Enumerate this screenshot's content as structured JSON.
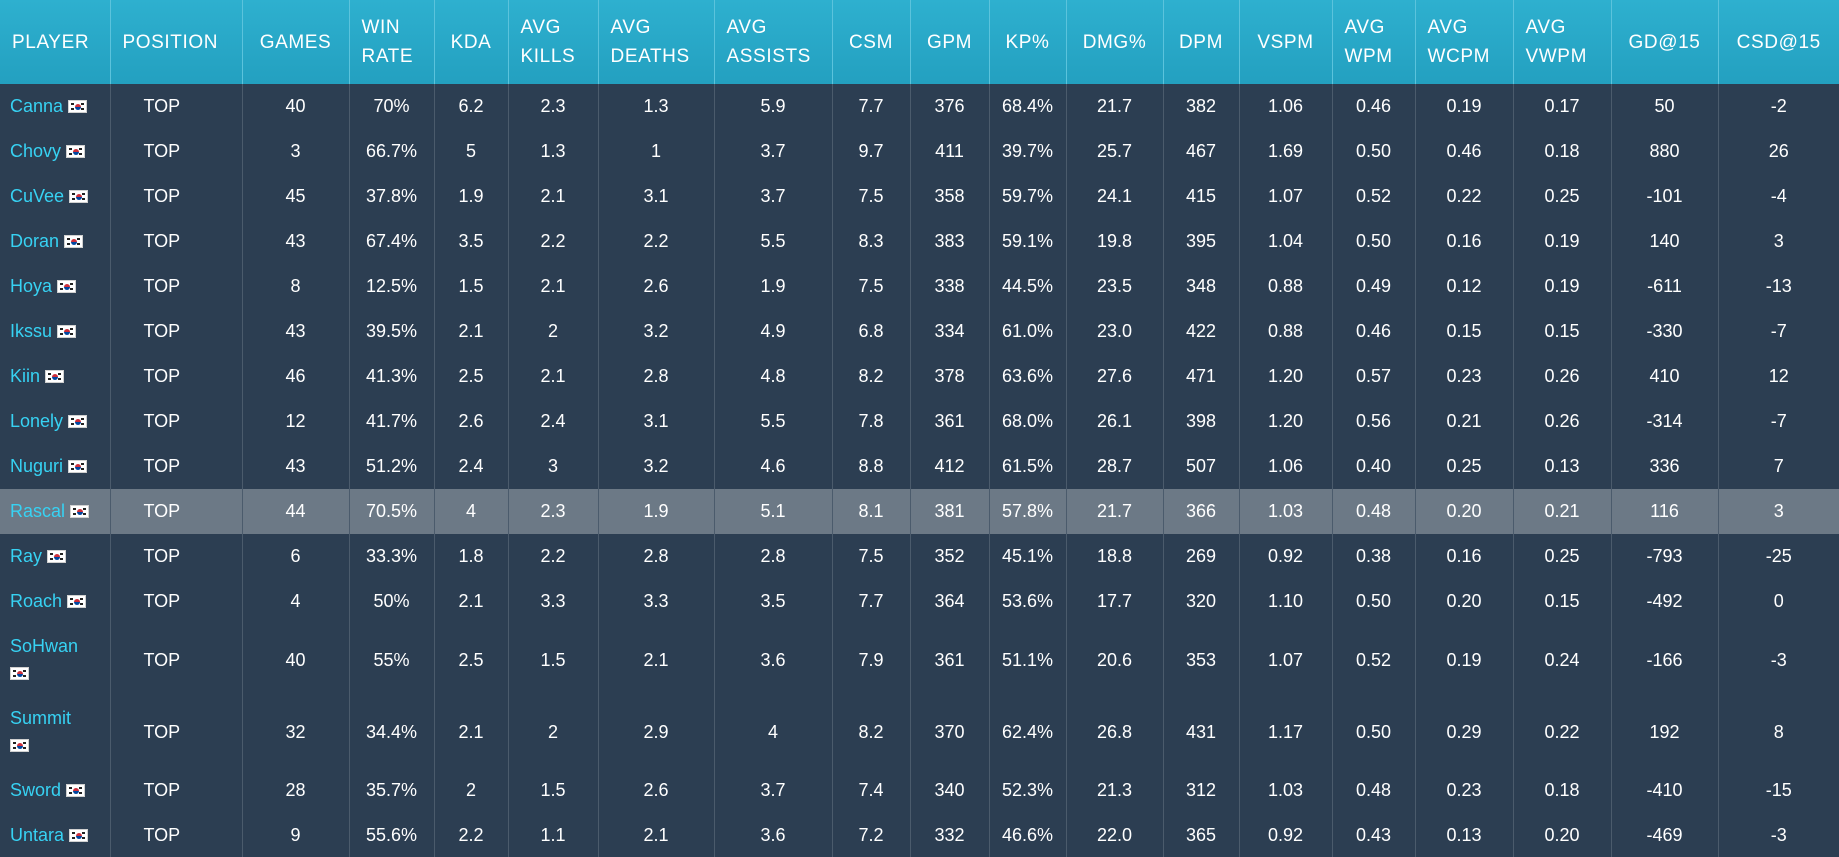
{
  "columns": [
    "PLAYER",
    "POSITION",
    "GAMES",
    "WIN RATE",
    "KDA",
    "AVG KILLS",
    "AVG DEATHS",
    "AVG ASSISTS",
    "CSM",
    "GPM",
    "KP%",
    "DMG%",
    "DPM",
    "VSPM",
    "AVG WPM",
    "AVG WCPM",
    "AVG VWPM",
    "GD@15",
    "CSD@15"
  ],
  "flag_icon": "south-korea-flag-icon",
  "highlight_color": "#6c7986",
  "rows": [
    {
      "player": "Canna",
      "position": "TOP",
      "games": "40",
      "win_rate": "70%",
      "kda": "6.2",
      "avg_kills": "2.3",
      "avg_deaths": "1.3",
      "avg_assists": "5.9",
      "csm": "7.7",
      "gpm": "376",
      "kp": "68.4%",
      "dmg": "21.7",
      "dpm": "382",
      "vspm": "1.06",
      "avg_wpm": "0.46",
      "avg_wcpm": "0.19",
      "avg_vwpm": "0.17",
      "gd15": "50",
      "csd15": "-2",
      "wrap": false,
      "highlighted": false
    },
    {
      "player": "Chovy",
      "position": "TOP",
      "games": "3",
      "win_rate": "66.7%",
      "kda": "5",
      "avg_kills": "1.3",
      "avg_deaths": "1",
      "avg_assists": "3.7",
      "csm": "9.7",
      "gpm": "411",
      "kp": "39.7%",
      "dmg": "25.7",
      "dpm": "467",
      "vspm": "1.69",
      "avg_wpm": "0.50",
      "avg_wcpm": "0.46",
      "avg_vwpm": "0.18",
      "gd15": "880",
      "csd15": "26",
      "wrap": false,
      "highlighted": false
    },
    {
      "player": "CuVee",
      "position": "TOP",
      "games": "45",
      "win_rate": "37.8%",
      "kda": "1.9",
      "avg_kills": "2.1",
      "avg_deaths": "3.1",
      "avg_assists": "3.7",
      "csm": "7.5",
      "gpm": "358",
      "kp": "59.7%",
      "dmg": "24.1",
      "dpm": "415",
      "vspm": "1.07",
      "avg_wpm": "0.52",
      "avg_wcpm": "0.22",
      "avg_vwpm": "0.25",
      "gd15": "-101",
      "csd15": "-4",
      "wrap": false,
      "highlighted": false
    },
    {
      "player": "Doran",
      "position": "TOP",
      "games": "43",
      "win_rate": "67.4%",
      "kda": "3.5",
      "avg_kills": "2.2",
      "avg_deaths": "2.2",
      "avg_assists": "5.5",
      "csm": "8.3",
      "gpm": "383",
      "kp": "59.1%",
      "dmg": "19.8",
      "dpm": "395",
      "vspm": "1.04",
      "avg_wpm": "0.50",
      "avg_wcpm": "0.16",
      "avg_vwpm": "0.19",
      "gd15": "140",
      "csd15": "3",
      "wrap": false,
      "highlighted": false
    },
    {
      "player": "Hoya",
      "position": "TOP",
      "games": "8",
      "win_rate": "12.5%",
      "kda": "1.5",
      "avg_kills": "2.1",
      "avg_deaths": "2.6",
      "avg_assists": "1.9",
      "csm": "7.5",
      "gpm": "338",
      "kp": "44.5%",
      "dmg": "23.5",
      "dpm": "348",
      "vspm": "0.88",
      "avg_wpm": "0.49",
      "avg_wcpm": "0.12",
      "avg_vwpm": "0.19",
      "gd15": "-611",
      "csd15": "-13",
      "wrap": false,
      "highlighted": false
    },
    {
      "player": "Ikssu",
      "position": "TOP",
      "games": "43",
      "win_rate": "39.5%",
      "kda": "2.1",
      "avg_kills": "2",
      "avg_deaths": "3.2",
      "avg_assists": "4.9",
      "csm": "6.8",
      "gpm": "334",
      "kp": "61.0%",
      "dmg": "23.0",
      "dpm": "422",
      "vspm": "0.88",
      "avg_wpm": "0.46",
      "avg_wcpm": "0.15",
      "avg_vwpm": "0.15",
      "gd15": "-330",
      "csd15": "-7",
      "wrap": false,
      "highlighted": false
    },
    {
      "player": "Kiin",
      "position": "TOP",
      "games": "46",
      "win_rate": "41.3%",
      "kda": "2.5",
      "avg_kills": "2.1",
      "avg_deaths": "2.8",
      "avg_assists": "4.8",
      "csm": "8.2",
      "gpm": "378",
      "kp": "63.6%",
      "dmg": "27.6",
      "dpm": "471",
      "vspm": "1.20",
      "avg_wpm": "0.57",
      "avg_wcpm": "0.23",
      "avg_vwpm": "0.26",
      "gd15": "410",
      "csd15": "12",
      "wrap": false,
      "highlighted": false
    },
    {
      "player": "Lonely",
      "position": "TOP",
      "games": "12",
      "win_rate": "41.7%",
      "kda": "2.6",
      "avg_kills": "2.4",
      "avg_deaths": "3.1",
      "avg_assists": "5.5",
      "csm": "7.8",
      "gpm": "361",
      "kp": "68.0%",
      "dmg": "26.1",
      "dpm": "398",
      "vspm": "1.20",
      "avg_wpm": "0.56",
      "avg_wcpm": "0.21",
      "avg_vwpm": "0.26",
      "gd15": "-314",
      "csd15": "-7",
      "wrap": false,
      "highlighted": false
    },
    {
      "player": "Nuguri",
      "position": "TOP",
      "games": "43",
      "win_rate": "51.2%",
      "kda": "2.4",
      "avg_kills": "3",
      "avg_deaths": "3.2",
      "avg_assists": "4.6",
      "csm": "8.8",
      "gpm": "412",
      "kp": "61.5%",
      "dmg": "28.7",
      "dpm": "507",
      "vspm": "1.06",
      "avg_wpm": "0.40",
      "avg_wcpm": "0.25",
      "avg_vwpm": "0.13",
      "gd15": "336",
      "csd15": "7",
      "wrap": false,
      "highlighted": false
    },
    {
      "player": "Rascal",
      "position": "TOP",
      "games": "44",
      "win_rate": "70.5%",
      "kda": "4",
      "avg_kills": "2.3",
      "avg_deaths": "1.9",
      "avg_assists": "5.1",
      "csm": "8.1",
      "gpm": "381",
      "kp": "57.8%",
      "dmg": "21.7",
      "dpm": "366",
      "vspm": "1.03",
      "avg_wpm": "0.48",
      "avg_wcpm": "0.20",
      "avg_vwpm": "0.21",
      "gd15": "116",
      "csd15": "3",
      "wrap": false,
      "highlighted": true
    },
    {
      "player": "Ray",
      "position": "TOP",
      "games": "6",
      "win_rate": "33.3%",
      "kda": "1.8",
      "avg_kills": "2.2",
      "avg_deaths": "2.8",
      "avg_assists": "2.8",
      "csm": "7.5",
      "gpm": "352",
      "kp": "45.1%",
      "dmg": "18.8",
      "dpm": "269",
      "vspm": "0.92",
      "avg_wpm": "0.38",
      "avg_wcpm": "0.16",
      "avg_vwpm": "0.25",
      "gd15": "-793",
      "csd15": "-25",
      "wrap": false,
      "highlighted": false
    },
    {
      "player": "Roach",
      "position": "TOP",
      "games": "4",
      "win_rate": "50%",
      "kda": "2.1",
      "avg_kills": "3.3",
      "avg_deaths": "3.3",
      "avg_assists": "3.5",
      "csm": "7.7",
      "gpm": "364",
      "kp": "53.6%",
      "dmg": "17.7",
      "dpm": "320",
      "vspm": "1.10",
      "avg_wpm": "0.50",
      "avg_wcpm": "0.20",
      "avg_vwpm": "0.15",
      "gd15": "-492",
      "csd15": "0",
      "wrap": false,
      "highlighted": false
    },
    {
      "player": "SoHwan",
      "position": "TOP",
      "games": "40",
      "win_rate": "55%",
      "kda": "2.5",
      "avg_kills": "1.5",
      "avg_deaths": "2.1",
      "avg_assists": "3.6",
      "csm": "7.9",
      "gpm": "361",
      "kp": "51.1%",
      "dmg": "20.6",
      "dpm": "353",
      "vspm": "1.07",
      "avg_wpm": "0.52",
      "avg_wcpm": "0.19",
      "avg_vwpm": "0.24",
      "gd15": "-166",
      "csd15": "-3",
      "wrap": true,
      "highlighted": false
    },
    {
      "player": "Summit",
      "position": "TOP",
      "games": "32",
      "win_rate": "34.4%",
      "kda": "2.1",
      "avg_kills": "2",
      "avg_deaths": "2.9",
      "avg_assists": "4",
      "csm": "8.2",
      "gpm": "370",
      "kp": "62.4%",
      "dmg": "26.8",
      "dpm": "431",
      "vspm": "1.17",
      "avg_wpm": "0.50",
      "avg_wcpm": "0.29",
      "avg_vwpm": "0.22",
      "gd15": "192",
      "csd15": "8",
      "wrap": true,
      "highlighted": false
    },
    {
      "player": "Sword",
      "position": "TOP",
      "games": "28",
      "win_rate": "35.7%",
      "kda": "2",
      "avg_kills": "1.5",
      "avg_deaths": "2.6",
      "avg_assists": "3.7",
      "csm": "7.4",
      "gpm": "340",
      "kp": "52.3%",
      "dmg": "21.3",
      "dpm": "312",
      "vspm": "1.03",
      "avg_wpm": "0.48",
      "avg_wcpm": "0.23",
      "avg_vwpm": "0.18",
      "gd15": "-410",
      "csd15": "-15",
      "wrap": false,
      "highlighted": false
    },
    {
      "player": "Untara",
      "position": "TOP",
      "games": "9",
      "win_rate": "55.6%",
      "kda": "2.2",
      "avg_kills": "1.1",
      "avg_deaths": "2.1",
      "avg_assists": "3.6",
      "csm": "7.2",
      "gpm": "332",
      "kp": "46.6%",
      "dmg": "22.0",
      "dpm": "365",
      "vspm": "0.92",
      "avg_wpm": "0.43",
      "avg_wcpm": "0.13",
      "avg_vwpm": "0.20",
      "gd15": "-469",
      "csd15": "-3",
      "wrap": false,
      "highlighted": false
    }
  ]
}
